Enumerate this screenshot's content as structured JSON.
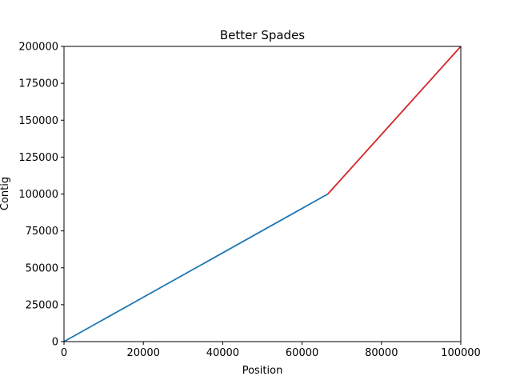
{
  "chart_data": {
    "type": "line",
    "title": "Better Spades",
    "xlabel": "Position",
    "ylabel": "Contig",
    "xlim": [
      0,
      100000
    ],
    "ylim": [
      0,
      200000
    ],
    "xticks": [
      0,
      20000,
      40000,
      60000,
      80000,
      100000
    ],
    "yticks": [
      0,
      25000,
      50000,
      75000,
      100000,
      125000,
      150000,
      175000,
      200000
    ],
    "grid": false,
    "legend": "none",
    "series": [
      {
        "color": "#1f77b4",
        "x": [
          0,
          66500
        ],
        "y": [
          0,
          100000
        ]
      },
      {
        "color": "#d62728",
        "x": [
          66500,
          100000
        ],
        "y": [
          100000,
          200000
        ]
      },
      {
        "color": "#ff7f0e",
        "x": [
          5500,
          5550
        ],
        "y": [
          100000,
          100000
        ]
      }
    ]
  }
}
